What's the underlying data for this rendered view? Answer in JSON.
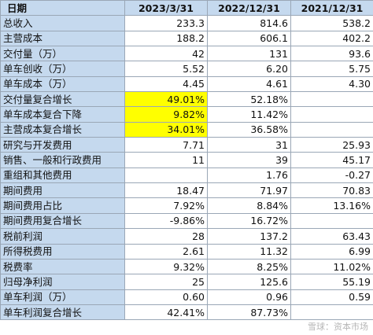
{
  "header": {
    "label": "日期",
    "periods": [
      "2023/3/31",
      "2022/12/31",
      "2021/12/31"
    ]
  },
  "rows": [
    {
      "label": "总收入",
      "values": [
        "233.3",
        "814.6",
        "538.2"
      ]
    },
    {
      "label": "主营成本",
      "values": [
        "188.2",
        "606.1",
        "402.2"
      ]
    },
    {
      "label": "交付量（万）",
      "values": [
        "42",
        "131",
        "93.6"
      ]
    },
    {
      "label": "单车创收（万）",
      "values": [
        "5.52",
        "6.20",
        "5.75"
      ]
    },
    {
      "label": "单车成本（万）",
      "values": [
        "4.45",
        "4.61",
        "4.30"
      ]
    },
    {
      "label": "交付量复合增长",
      "values": [
        "49.01%",
        "52.18%",
        ""
      ]
    },
    {
      "label": "单车成本复合下降",
      "values": [
        "9.82%",
        "11.42%",
        ""
      ]
    },
    {
      "label": "主营成本复合增长",
      "values": [
        "34.01%",
        "36.58%",
        ""
      ]
    },
    {
      "label": "研究与开发费用",
      "values": [
        "7.71",
        "31",
        "25.93"
      ]
    },
    {
      "label": "销售、一般和行政费用",
      "values": [
        "11",
        "39",
        "45.17"
      ]
    },
    {
      "label": "重组和其他费用",
      "values": [
        "",
        "1.76",
        "-0.27"
      ]
    },
    {
      "label": "期间费用",
      "values": [
        "18.47",
        "71.97",
        "70.83"
      ]
    },
    {
      "label": "期间费用占比",
      "values": [
        "7.92%",
        "8.84%",
        "13.16%"
      ]
    },
    {
      "label": "期间费用复合增长",
      "values": [
        "-9.86%",
        "16.72%",
        ""
      ]
    },
    {
      "label": "税前利润",
      "values": [
        "28",
        "137.2",
        "63.43"
      ]
    },
    {
      "label": "所得税费用",
      "values": [
        "2.61",
        "11.32",
        "6.99"
      ]
    },
    {
      "label": "税费率",
      "values": [
        "9.32%",
        "8.25%",
        "11.02%"
      ]
    },
    {
      "label": "归母净利润",
      "values": [
        "25",
        "125.6",
        "55.19"
      ]
    },
    {
      "label": "单车利润（万）",
      "values": [
        "0.60",
        "0.96",
        "0.59"
      ]
    },
    {
      "label": "单车利润复合增长",
      "values": [
        "42.41%",
        "87.73%",
        ""
      ]
    }
  ],
  "highlight_color": "#ffff00",
  "header_color": "#c5d9ee",
  "watermark": "雪球：资本市场"
}
